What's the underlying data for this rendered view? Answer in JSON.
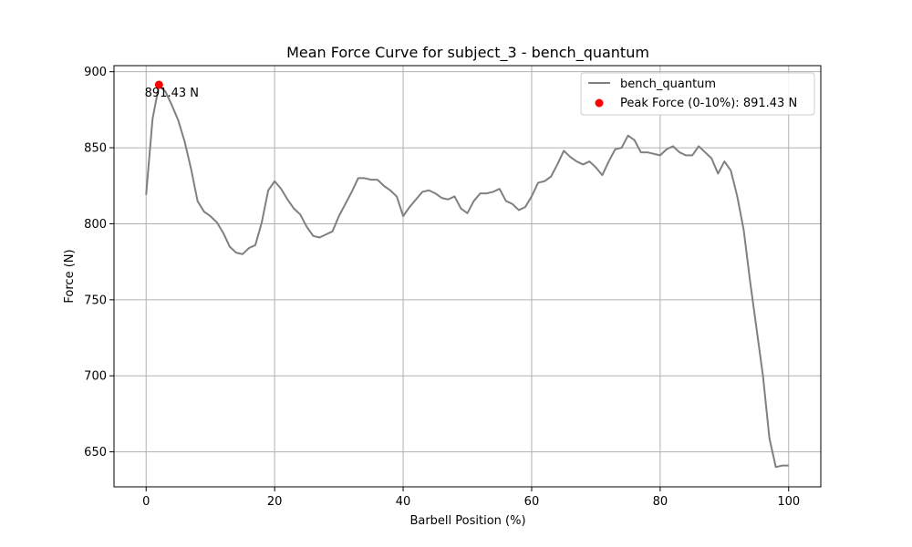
{
  "chart_data": {
    "type": "line",
    "title": "Mean Force Curve for subject_3 - bench_quantum",
    "xlabel": "Barbell Position (%)",
    "ylabel": "Force (N)",
    "xlim": [
      -5,
      105
    ],
    "ylim": [
      627,
      904
    ],
    "xticks": [
      0,
      20,
      40,
      60,
      80,
      100
    ],
    "yticks": [
      650,
      700,
      750,
      800,
      850,
      900
    ],
    "grid": true,
    "legend_position": "top-right",
    "series": [
      {
        "name": "bench_quantum",
        "color": "#808080",
        "x": [
          0,
          1,
          2,
          3,
          4,
          5,
          6,
          7,
          8,
          9,
          10,
          11,
          12,
          13,
          14,
          15,
          16,
          17,
          18,
          19,
          20,
          21,
          22,
          23,
          24,
          25,
          26,
          27,
          28,
          29,
          30,
          31,
          32,
          33,
          34,
          35,
          36,
          37,
          38,
          39,
          40,
          41,
          42,
          43,
          44,
          45,
          46,
          47,
          48,
          49,
          50,
          51,
          52,
          53,
          54,
          55,
          56,
          57,
          58,
          59,
          60,
          61,
          62,
          63,
          64,
          65,
          66,
          67,
          68,
          69,
          70,
          71,
          72,
          73,
          74,
          75,
          76,
          77,
          78,
          79,
          80,
          81,
          82,
          83,
          84,
          85,
          86,
          87,
          88,
          89,
          90,
          91,
          92,
          93,
          94,
          95,
          96,
          97,
          98,
          99,
          100
        ],
        "y": [
          819,
          869,
          891,
          887,
          878,
          868,
          854,
          836,
          815,
          808,
          805,
          801,
          794,
          785,
          781,
          780,
          784,
          786,
          801,
          822,
          828,
          823,
          816,
          810,
          806,
          798,
          792,
          791,
          793,
          795,
          805,
          813,
          821,
          830,
          830,
          829,
          829,
          825,
          822,
          818,
          805,
          811,
          816,
          821,
          822,
          820,
          817,
          816,
          818,
          810,
          807,
          815,
          820,
          820,
          821,
          823,
          815,
          813,
          809,
          811,
          818,
          827,
          828,
          831,
          839,
          848,
          844,
          841,
          839,
          841,
          837,
          832,
          841,
          849,
          850,
          858,
          855,
          847,
          847,
          846,
          845,
          849,
          851,
          847,
          845,
          845,
          851,
          847,
          843,
          833,
          841,
          835,
          818,
          796,
          762,
          731,
          700,
          659,
          640,
          641,
          641
        ]
      }
    ],
    "peak": {
      "label": "Peak Force (0-10%): 891.43 N",
      "x": 2,
      "y": 891.43,
      "annotation": "891.43 N",
      "color": "#ff0000"
    }
  }
}
